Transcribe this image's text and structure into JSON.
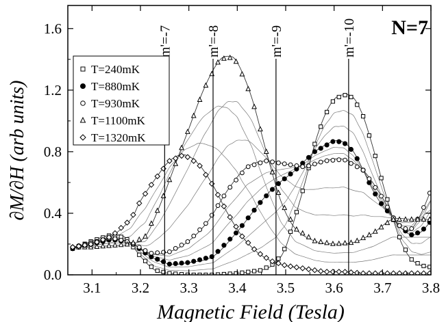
{
  "chart_data": {
    "type": "scatter",
    "title": "",
    "panel_label": "N=7",
    "xlabel": "Magnetic Field (Tesla)",
    "ylabel": "∂M/∂H (arb units)",
    "xlim": [
      3.05,
      3.8
    ],
    "ylim": [
      0.0,
      1.75
    ],
    "x_ticks": [
      3.1,
      3.2,
      3.3,
      3.4,
      3.5,
      3.6,
      3.7,
      3.8
    ],
    "x_tick_labels": [
      "3.1",
      "3.2",
      "3.3",
      "3.4",
      "3.5",
      "3.6",
      "3.7",
      "3.8"
    ],
    "y_ticks": [
      0.0,
      0.4,
      0.8,
      1.2,
      1.6
    ],
    "y_tick_labels": [
      "0.0",
      "0.4",
      "0.8",
      "1.2",
      "1.6"
    ],
    "grid": false,
    "legend_position": "upper-left",
    "vertical_markers": [
      {
        "x": 3.25,
        "label": "m'=-7"
      },
      {
        "x": 3.35,
        "label": "m'=-8"
      },
      {
        "x": 3.48,
        "label": "m'=-9"
      },
      {
        "x": 3.63,
        "label": "m'=-10"
      }
    ],
    "series": [
      {
        "name": "T=240mK",
        "marker": "open-square",
        "x": [
          3.06,
          3.1,
          3.14,
          3.17,
          3.2,
          3.23,
          3.26,
          3.3,
          3.35,
          3.4,
          3.45,
          3.48,
          3.5,
          3.52,
          3.54,
          3.56,
          3.58,
          3.6,
          3.62,
          3.64,
          3.66,
          3.68,
          3.7,
          3.72,
          3.74,
          3.76,
          3.78,
          3.8
        ],
        "y": [
          0.17,
          0.22,
          0.26,
          0.24,
          0.12,
          0.03,
          0.01,
          0.0,
          0.0,
          0.01,
          0.03,
          0.08,
          0.18,
          0.38,
          0.6,
          0.85,
          1.03,
          1.14,
          1.17,
          1.15,
          1.03,
          0.83,
          0.6,
          0.38,
          0.2,
          0.1,
          0.06,
          0.05
        ]
      },
      {
        "name": "T=880mK",
        "marker": "filled-circle",
        "x": [
          3.06,
          3.1,
          3.14,
          3.18,
          3.22,
          3.26,
          3.3,
          3.35,
          3.4,
          3.45,
          3.48,
          3.52,
          3.56,
          3.6,
          3.62,
          3.64,
          3.66,
          3.68,
          3.7,
          3.72,
          3.74,
          3.76,
          3.78,
          3.8
        ],
        "y": [
          0.17,
          0.2,
          0.23,
          0.21,
          0.12,
          0.07,
          0.08,
          0.12,
          0.28,
          0.48,
          0.58,
          0.68,
          0.8,
          0.87,
          0.86,
          0.8,
          0.68,
          0.55,
          0.45,
          0.38,
          0.3,
          0.26,
          0.28,
          0.35
        ]
      },
      {
        "name": "T=930mK",
        "marker": "open-circle",
        "x": [
          3.06,
          3.1,
          3.14,
          3.18,
          3.22,
          3.26,
          3.3,
          3.34,
          3.38,
          3.42,
          3.46,
          3.5,
          3.54,
          3.58,
          3.62,
          3.66,
          3.7,
          3.72,
          3.74,
          3.76,
          3.78,
          3.8
        ],
        "y": [
          0.18,
          0.21,
          0.24,
          0.21,
          0.14,
          0.15,
          0.22,
          0.35,
          0.55,
          0.7,
          0.74,
          0.72,
          0.7,
          0.74,
          0.75,
          0.68,
          0.5,
          0.38,
          0.3,
          0.3,
          0.4,
          0.55
        ]
      },
      {
        "name": "T=1100mK",
        "marker": "open-triangle",
        "x": [
          3.06,
          3.1,
          3.14,
          3.18,
          3.21,
          3.24,
          3.27,
          3.3,
          3.33,
          3.36,
          3.38,
          3.4,
          3.43,
          3.46,
          3.49,
          3.52,
          3.56,
          3.6,
          3.64,
          3.68,
          3.72,
          3.76,
          3.8
        ],
        "y": [
          0.18,
          0.18,
          0.19,
          0.2,
          0.25,
          0.45,
          0.7,
          0.95,
          1.2,
          1.38,
          1.42,
          1.38,
          1.15,
          0.8,
          0.48,
          0.3,
          0.22,
          0.2,
          0.21,
          0.27,
          0.36,
          0.36,
          0.36
        ]
      },
      {
        "name": "T=1320mK",
        "marker": "open-diamond",
        "x": [
          3.06,
          3.1,
          3.14,
          3.18,
          3.2,
          3.23,
          3.26,
          3.29,
          3.32,
          3.35,
          3.38,
          3.41,
          3.44,
          3.47,
          3.5,
          3.54,
          3.58,
          3.62,
          3.66,
          3.7,
          3.74,
          3.78,
          3.8
        ],
        "y": [
          0.18,
          0.2,
          0.25,
          0.36,
          0.48,
          0.62,
          0.74,
          0.78,
          0.72,
          0.58,
          0.4,
          0.25,
          0.15,
          0.09,
          0.06,
          0.04,
          0.02,
          0.02,
          0.01,
          0.01,
          0.01,
          0.01,
          0.01
        ]
      }
    ]
  }
}
